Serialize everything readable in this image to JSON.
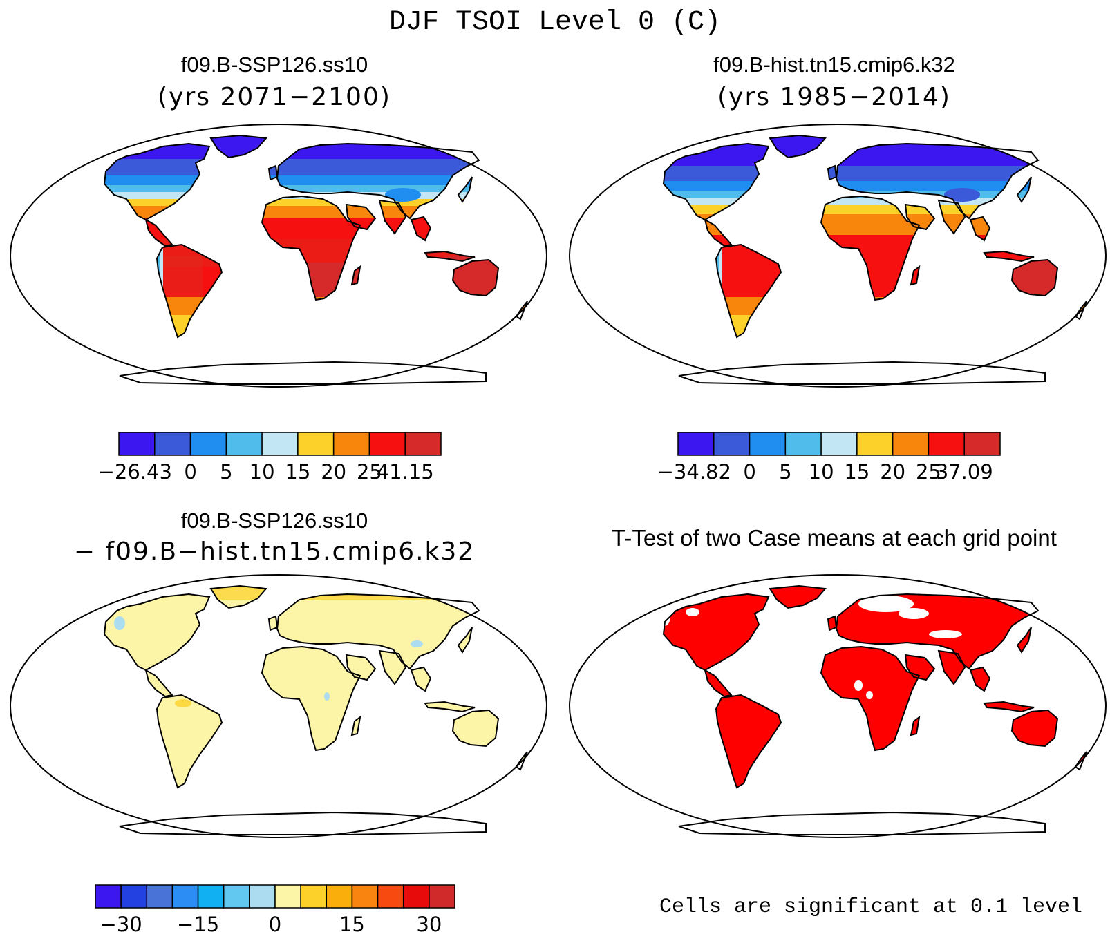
{
  "figure_title": "DJF TSOI Level 0 (C)",
  "panels": [
    {
      "id": "ssp126",
      "case_name": "f09.B-SSP126.ss10",
      "years": "(yrs 2071−2100)",
      "colorbar": {
        "colors": [
          "#3c17f0",
          "#3b5ad9",
          "#1f8ef0",
          "#4fbcec",
          "#c3e6f4",
          "#fcd22a",
          "#f9860c",
          "#f71010",
          "#d62a2a"
        ],
        "tick_labels": [
          "−26.43",
          "0",
          "5",
          "10",
          "15",
          "20",
          "25",
          "41.15"
        ]
      }
    },
    {
      "id": "hist",
      "case_name": "f09.B-hist.tn15.cmip6.k32",
      "years": "(yrs 1985−2014)",
      "colorbar": {
        "colors": [
          "#3c17f0",
          "#3b5ad9",
          "#1f8ef0",
          "#4fbcec",
          "#c3e6f4",
          "#fcd22a",
          "#f9860c",
          "#f71010",
          "#d62a2a"
        ],
        "tick_labels": [
          "−34.82",
          "0",
          "5",
          "10",
          "15",
          "20",
          "25",
          "37.09"
        ]
      }
    },
    {
      "id": "diff",
      "case_name": "f09.B-SSP126.ss10",
      "subtitle": "− f09.B−hist.tn15.cmip6.k32",
      "colorbar": {
        "colors": [
          "#3c17f0",
          "#2340e0",
          "#4a73d8",
          "#2c8ef4",
          "#10b0f2",
          "#62c8f0",
          "#acdcef",
          "#fcf4a6",
          "#fcd22a",
          "#f9ae0c",
          "#f98510",
          "#f74a10",
          "#e70b0b",
          "#d02a2a"
        ],
        "tick_labels": [
          "−30",
          "−15",
          "0",
          "15",
          "30"
        ]
      }
    },
    {
      "id": "ttest",
      "title": "T-Test of two Case means at each grid point",
      "note": "Cells are significant at 0.1 level"
    }
  ]
}
